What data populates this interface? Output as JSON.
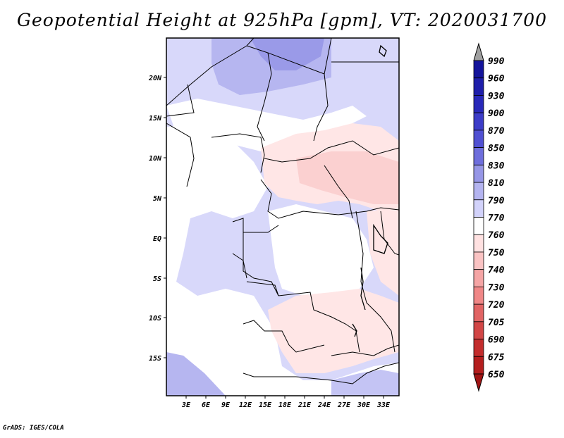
{
  "title": "Geopotential Height at 925hPa [gpm], VT: 2020031700",
  "credit": "GrADS: IGES/COLA",
  "map": {
    "lon_ticks": [
      "3E",
      "6E",
      "9E",
      "12E",
      "15E",
      "18E",
      "21E",
      "24E",
      "27E",
      "30E",
      "33E"
    ],
    "lat_ticks": [
      "20N",
      "15N",
      "10N",
      "5N",
      "EQ",
      "5S",
      "10S",
      "15S"
    ]
  },
  "colorbar": {
    "levels": [
      "990",
      "960",
      "930",
      "900",
      "870",
      "850",
      "830",
      "810",
      "790",
      "770",
      "760",
      "750",
      "740",
      "730",
      "720",
      "705",
      "690",
      "675",
      "650"
    ],
    "colors": [
      "#0a0a8c",
      "#14149b",
      "#1e1eaa",
      "#2828b9",
      "#3c3cc8",
      "#5050d2",
      "#6e6edc",
      "#9696e6",
      "#b4b4f0",
      "#d2d2fa",
      "#ffffff",
      "#ffe1e1",
      "#fac3c3",
      "#f5a5a5",
      "#f08787",
      "#e16464",
      "#d24646",
      "#c32d2d",
      "#b41e1e",
      "#a01414"
    ]
  }
}
